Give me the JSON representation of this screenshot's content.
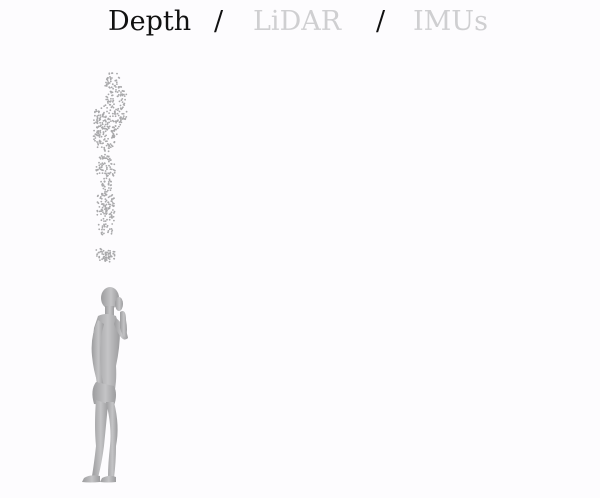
{
  "modes": [
    {
      "label": "Depth",
      "active": true
    },
    {
      "label": "LiDAR",
      "active": false
    },
    {
      "label": "IMUs",
      "active": false
    }
  ],
  "separator": "/",
  "colors": {
    "background": "#fdfcfe",
    "active_label": "#111111",
    "inactive_label": "#cfcfd1",
    "point_cloud": "#a9a9ab",
    "mesh_fill": "#c4c4c6",
    "mesh_shade": "#9c9c9e"
  },
  "panels": [
    {
      "type": "point-cloud",
      "icon": "human-pointcloud"
    },
    {
      "type": "body-mesh",
      "icon": "human-mesh"
    }
  ]
}
